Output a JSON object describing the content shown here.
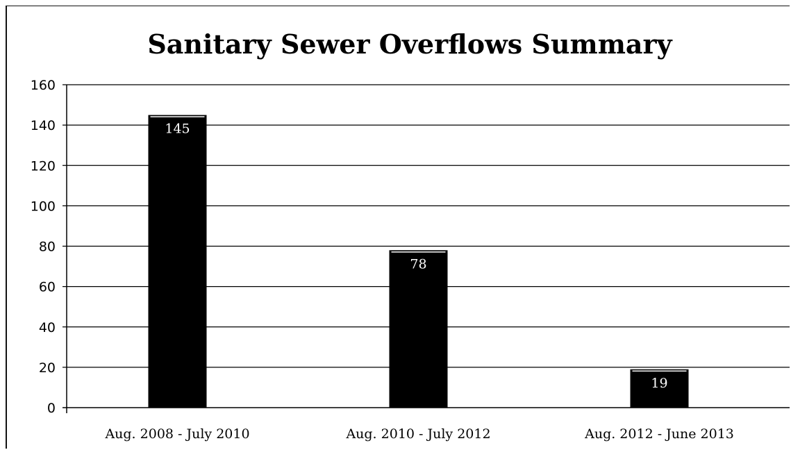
{
  "chart_data": {
    "type": "bar",
    "title": "Sanitary Sewer Overflows Summary",
    "categories": [
      "Aug. 2008 - July 2010",
      "Aug. 2010 - July 2012",
      "Aug. 2012 - June 2013"
    ],
    "values": [
      145,
      78,
      19
    ],
    "data_labels": [
      "145",
      "78",
      "19"
    ],
    "xlabel": "",
    "ylabel": "",
    "ylim": [
      0,
      160
    ],
    "yticks": [
      "0",
      "20",
      "40",
      "60",
      "80",
      "100",
      "120",
      "140",
      "160"
    ],
    "grid": true,
    "legend": "none",
    "bar_color": "#000000"
  }
}
